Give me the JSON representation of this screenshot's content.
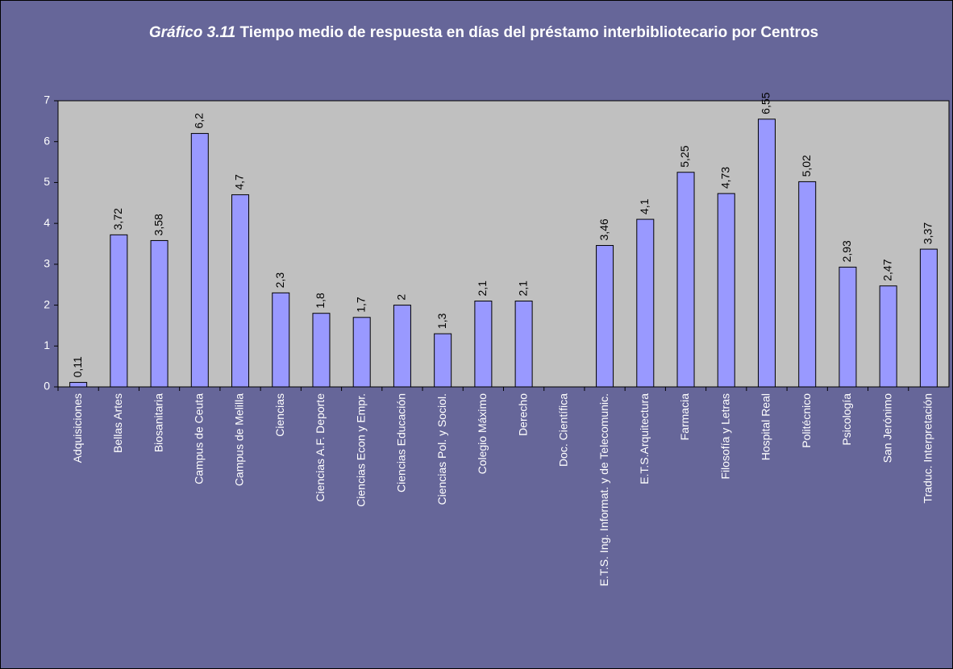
{
  "chart_data": {
    "type": "bar",
    "title_number": "Gráfico 3.11",
    "title": "Tiempo medio de respuesta en días del préstamo interbibliotecario por Centros",
    "categories": [
      "Adquisiciones",
      "Bellas Artes",
      "Biosanitaria",
      "Campus de Ceuta",
      "Campus de Melilla",
      "Ciencias",
      "Ciencias A.F. Deporte",
      "Ciencias Econ y Empr.",
      "Ciencias Educación",
      "Ciencias Pol. y Sociol.",
      "Colegio Máximo",
      "Derecho",
      "Doc. Científica",
      "E.T.S. Ing. Informat. y de Telecomunic.",
      "E.T.S.Arquitectura",
      "Farmacia",
      "Filosofía y Letras",
      "Hospital Real",
      "Politécnico",
      "Psicología",
      "San Jerónimo",
      "Traduc. Interpretación"
    ],
    "values": [
      0.11,
      3.72,
      3.58,
      6.2,
      4.7,
      2.3,
      1.8,
      1.7,
      2,
      1.3,
      2.1,
      2.1,
      null,
      3.46,
      4.1,
      5.25,
      4.73,
      6.55,
      5.02,
      2.93,
      2.47,
      3.37
    ],
    "value_labels": [
      "0,11",
      "3,72",
      "3,58",
      "6,2",
      "4,7",
      "2,3",
      "1,8",
      "1,7",
      "2",
      "1,3",
      "2,1",
      "2,1",
      null,
      "3,46",
      "4,1",
      "5,25",
      "4,73",
      "6,55",
      "5,02",
      "2,93",
      "2,47",
      "3,37"
    ],
    "color": "#9999ff",
    "ylim": [
      0,
      7
    ],
    "yticks": [
      0,
      1,
      2,
      3,
      4,
      5,
      6,
      7
    ],
    "grid": false
  }
}
